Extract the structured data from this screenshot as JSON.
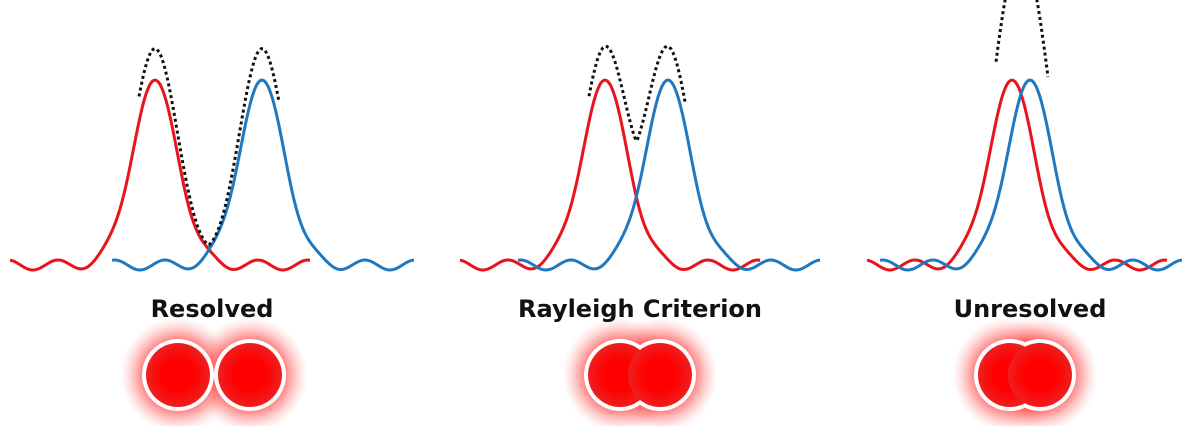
{
  "panels": [
    {
      "label": "Resolved"
    },
    {
      "label": "Rayleigh Criterion"
    },
    {
      "label": "Unresolved"
    }
  ]
}
